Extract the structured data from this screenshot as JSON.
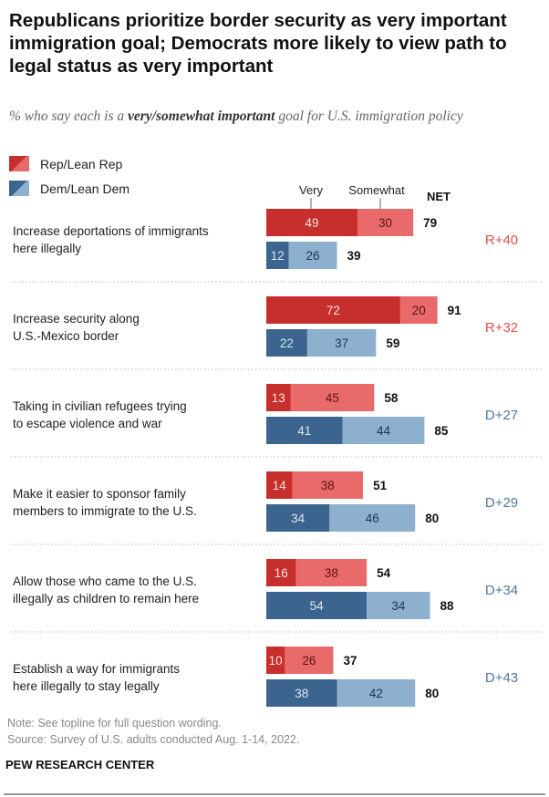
{
  "colors": {
    "rep_very": "#c62f2b",
    "rep_somewhat": "#e86a6a",
    "dem_very": "#3b648e",
    "dem_somewhat": "#8db0cf",
    "rep_diff": "#d9534f",
    "dem_diff": "#4f79a1"
  },
  "chart_data": {
    "type": "bar",
    "orientation": "horizontal-stacked",
    "title": "Republicans prioritize border security as very important immigration goal; Democrats more likely to view path to legal status as very important",
    "subtitle_pre": "% who say each is a ",
    "subtitle_em": "very/somewhat important",
    "subtitle_post": " goal for U.S. immigration policy",
    "legend": [
      "Rep/Lean Rep",
      "Dem/Lean Dem"
    ],
    "column_labels": {
      "very": "Very",
      "somewhat": "Somewhat",
      "net": "NET"
    },
    "categories": [
      {
        "label": "Increase deportations of immigrants here illegally",
        "rep": {
          "very": 49,
          "somewhat": 30,
          "net": 79
        },
        "dem": {
          "very": 12,
          "somewhat": 26,
          "net": 39
        },
        "diff": "R+40",
        "lean": "rep"
      },
      {
        "label": "Increase security along U.S.-Mexico border",
        "rep": {
          "very": 72,
          "somewhat": 20,
          "net": 91
        },
        "dem": {
          "very": 22,
          "somewhat": 37,
          "net": 59
        },
        "diff": "R+32",
        "lean": "rep"
      },
      {
        "label": "Taking in civilian refugees trying to escape violence and war",
        "rep": {
          "very": 13,
          "somewhat": 45,
          "net": 58
        },
        "dem": {
          "very": 41,
          "somewhat": 44,
          "net": 85
        },
        "diff": "D+27",
        "lean": "dem"
      },
      {
        "label": "Make it easier to sponsor family members to immigrate to the U.S.",
        "rep": {
          "very": 14,
          "somewhat": 38,
          "net": 51
        },
        "dem": {
          "very": 34,
          "somewhat": 46,
          "net": 80
        },
        "diff": "D+29",
        "lean": "dem"
      },
      {
        "label": "Allow those who came to the U.S. illegally as children to remain here",
        "rep": {
          "very": 16,
          "somewhat": 38,
          "net": 54
        },
        "dem": {
          "very": 54,
          "somewhat": 34,
          "net": 88
        },
        "diff": "D+34",
        "lean": "dem"
      },
      {
        "label": "Establish a way for immigrants here illegally to stay legally",
        "rep": {
          "very": 10,
          "somewhat": 26,
          "net": 37
        },
        "dem": {
          "very": 38,
          "somewhat": 42,
          "net": 80
        },
        "diff": "D+43",
        "lean": "dem"
      }
    ],
    "label_lines": [
      [
        "Increase deportations of immigrants",
        "here illegally"
      ],
      [
        "Increase security along",
        "U.S.-Mexico border"
      ],
      [
        "Taking in civilian refugees trying",
        "to escape violence and war"
      ],
      [
        "Make it easier to sponsor family",
        "members to immigrate to the U.S."
      ],
      [
        "Allow those who came to the U.S.",
        "illegally as children to remain here"
      ],
      [
        "Establish a way for immigrants",
        "here illegally to stay legally"
      ]
    ]
  },
  "note": "Note: See topline for full question wording.",
  "source": "Source: Survey of U.S. adults conducted Aug. 1-14, 2022.",
  "brand": "PEW RESEARCH CENTER"
}
